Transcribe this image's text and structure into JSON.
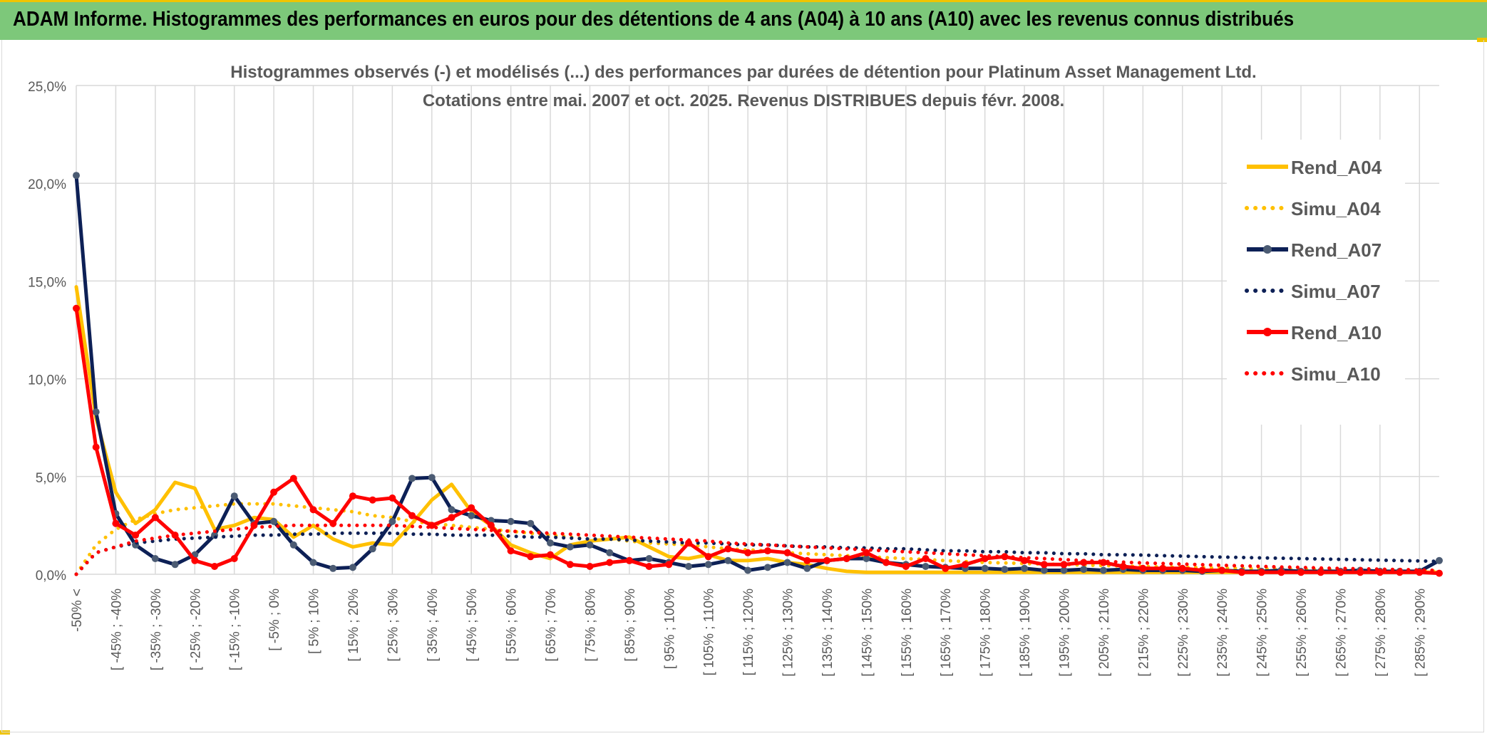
{
  "banner": {
    "title": "ADAM Informe. Histogrammes des performances en euros pour des détentions de 4 ans (A04) à 10 ans (A10) avec les revenus connus distribués"
  },
  "chart_data": {
    "type": "line",
    "title": "Histogrammes observés (-) et modélisés (...) des performances par durées de détention pour Platinum Asset Management Ltd.",
    "subtitle": "Cotations entre mai. 2007 et oct. 2025. Revenus DISTRIBUES depuis févr. 2008.",
    "xlabel": "",
    "ylabel": "",
    "ylim": [
      0,
      25
    ],
    "yticks": [
      "0,0%",
      "5,0%",
      "10,0%",
      "15,0%",
      "20,0%",
      "25,0%"
    ],
    "grid": true,
    "legend_position": "right",
    "x_labels": [
      "-50% <",
      "[ -45% ; -40%",
      "[ -35% ; -30%",
      "[ -25% ; -20%",
      "[ -15% ; -10%",
      "[ -5% ; 0%",
      "[ 5% ; 10%",
      "[ 15% ; 20%",
      "[ 25% ; 30%",
      "[ 35% ; 40%",
      "[ 45% ; 50%",
      "[ 55% ; 60%",
      "[ 65% ; 70%",
      "[ 75% ; 80%",
      "[ 85% ; 90%",
      "[ 95% ; 100%",
      "[ 105% ; 110%",
      "[ 115% ; 120%",
      "[ 125% ; 130%",
      "[ 135% ; 140%",
      "[ 145% ; 150%",
      "[ 155% ; 160%",
      "[ 165% ; 170%",
      "[ 175% ; 180%",
      "[ 185% ; 190%",
      "[ 195% ; 200%",
      "[ 205% ; 210%",
      "[ 215% ; 220%",
      "[ 225% ; 230%",
      "[ 235% ; 240%",
      "[ 245% ; 250%",
      "[ 255% ; 260%",
      "[ 265% ; 270%",
      "[ 275% ; 280%",
      "[ 285% ; 290%"
    ],
    "series": [
      {
        "name": "Rend_A04",
        "color": "#ffc000",
        "style": "solid",
        "markers": false,
        "values": [
          14.7,
          8.0,
          4.2,
          2.6,
          3.3,
          4.7,
          4.4,
          2.3,
          2.5,
          2.9,
          2.8,
          1.9,
          2.5,
          1.8,
          1.4,
          1.6,
          1.5,
          2.6,
          3.8,
          4.6,
          3.2,
          2.5,
          1.5,
          1.1,
          0.8,
          1.5,
          1.7,
          1.8,
          1.9,
          1.4,
          0.9,
          0.8,
          1.0,
          0.7,
          0.7,
          0.8,
          0.6,
          0.5,
          0.3,
          0.15,
          0.1,
          0.1,
          0.1,
          0.1,
          0.1,
          0.1,
          0.1,
          0.1,
          0.1,
          0.1,
          0.1,
          0.1,
          0.1,
          0.1,
          0.1,
          0.1,
          0.1,
          0.1,
          0.1,
          0.1,
          0.1,
          0.1,
          0.1,
          0.1,
          0.1,
          0.1,
          0.1,
          0.1,
          0.1,
          0.1
        ]
      },
      {
        "name": "Simu_A04",
        "color": "#ffc000",
        "style": "dotted",
        "markers": false,
        "values": [
          0.0,
          1.5,
          2.3,
          2.8,
          3.1,
          3.3,
          3.4,
          3.5,
          3.6,
          3.6,
          3.6,
          3.5,
          3.4,
          3.3,
          3.2,
          3.0,
          2.9,
          2.7,
          2.6,
          2.5,
          2.4,
          2.3,
          2.2,
          2.1,
          2.0,
          1.9,
          1.8,
          1.8,
          1.7,
          1.6,
          1.55,
          1.5,
          1.4,
          1.3,
          1.25,
          1.2,
          1.1,
          1.05,
          1.0,
          0.95,
          0.9,
          0.85,
          0.8,
          0.75,
          0.7,
          0.65,
          0.6,
          0.58,
          0.55,
          0.52,
          0.5,
          0.47,
          0.45,
          0.42,
          0.4,
          0.38,
          0.36,
          0.34,
          0.32,
          0.3,
          0.28,
          0.27,
          0.25,
          0.24,
          0.22,
          0.21,
          0.2,
          0.19,
          0.18,
          0.17
        ]
      },
      {
        "name": "Rend_A07",
        "color": "#0d2056",
        "style": "solid",
        "markers": true,
        "values": [
          20.4,
          8.3,
          3.1,
          1.5,
          0.8,
          0.5,
          1.0,
          2.0,
          4.0,
          2.6,
          2.7,
          1.5,
          0.6,
          0.3,
          0.35,
          1.3,
          2.7,
          4.9,
          4.95,
          3.3,
          3.0,
          2.75,
          2.7,
          2.6,
          1.6,
          1.4,
          1.5,
          1.1,
          0.7,
          0.8,
          0.6,
          0.4,
          0.5,
          0.7,
          0.2,
          0.35,
          0.6,
          0.3,
          0.7,
          0.8,
          0.8,
          0.6,
          0.5,
          0.4,
          0.35,
          0.3,
          0.3,
          0.25,
          0.3,
          0.2,
          0.2,
          0.25,
          0.2,
          0.25,
          0.2,
          0.2,
          0.2,
          0.15,
          0.2,
          0.15,
          0.15,
          0.2,
          0.15,
          0.15,
          0.15,
          0.2,
          0.15,
          0.15,
          0.15,
          0.7
        ]
      },
      {
        "name": "Simu_A07",
        "color": "#0d2056",
        "style": "dotted",
        "markers": false,
        "values": [
          0.0,
          1.1,
          1.4,
          1.6,
          1.7,
          1.8,
          1.85,
          1.9,
          1.95,
          2.0,
          2.0,
          2.05,
          2.05,
          2.1,
          2.1,
          2.1,
          2.1,
          2.05,
          2.05,
          2.0,
          2.0,
          2.0,
          1.95,
          1.9,
          1.9,
          1.85,
          1.8,
          1.8,
          1.75,
          1.7,
          1.65,
          1.6,
          1.6,
          1.55,
          1.5,
          1.5,
          1.45,
          1.4,
          1.4,
          1.35,
          1.35,
          1.3,
          1.3,
          1.25,
          1.2,
          1.2,
          1.15,
          1.15,
          1.1,
          1.1,
          1.05,
          1.05,
          1.0,
          1.0,
          0.98,
          0.95,
          0.93,
          0.9,
          0.88,
          0.86,
          0.84,
          0.82,
          0.8,
          0.78,
          0.76,
          0.74,
          0.72,
          0.7,
          0.68,
          0.66
        ]
      },
      {
        "name": "Rend_A10",
        "color": "#ff0000",
        "style": "solid",
        "markers": true,
        "values": [
          13.6,
          6.5,
          2.6,
          2.0,
          2.9,
          2.0,
          0.7,
          0.4,
          0.8,
          2.5,
          4.2,
          4.9,
          3.3,
          2.6,
          4.0,
          3.8,
          3.9,
          3.0,
          2.5,
          2.9,
          3.4,
          2.5,
          1.2,
          0.9,
          1.0,
          0.5,
          0.4,
          0.6,
          0.7,
          0.4,
          0.5,
          1.6,
          0.9,
          1.3,
          1.1,
          1.2,
          1.1,
          0.7,
          0.7,
          0.8,
          1.1,
          0.6,
          0.4,
          0.8,
          0.3,
          0.5,
          0.8,
          0.9,
          0.7,
          0.5,
          0.5,
          0.6,
          0.6,
          0.4,
          0.3,
          0.3,
          0.3,
          0.2,
          0.2,
          0.1,
          0.1,
          0.1,
          0.1,
          0.1,
          0.1,
          0.1,
          0.1,
          0.1,
          0.1,
          0.05
        ]
      },
      {
        "name": "Simu_A10",
        "color": "#ff0000",
        "style": "dotted",
        "markers": false,
        "values": [
          0.0,
          1.1,
          1.4,
          1.7,
          1.85,
          2.0,
          2.1,
          2.2,
          2.3,
          2.4,
          2.45,
          2.5,
          2.5,
          2.5,
          2.5,
          2.5,
          2.5,
          2.45,
          2.4,
          2.35,
          2.3,
          2.25,
          2.2,
          2.15,
          2.1,
          2.05,
          2.0,
          1.95,
          1.9,
          1.85,
          1.8,
          1.75,
          1.7,
          1.6,
          1.55,
          1.5,
          1.45,
          1.4,
          1.35,
          1.3,
          1.25,
          1.2,
          1.15,
          1.1,
          1.05,
          1.0,
          0.95,
          0.9,
          0.85,
          0.8,
          0.75,
          0.7,
          0.66,
          0.62,
          0.58,
          0.55,
          0.52,
          0.49,
          0.46,
          0.43,
          0.4,
          0.37,
          0.35,
          0.32,
          0.3,
          0.28,
          0.26,
          0.24,
          0.22,
          0.2
        ]
      }
    ]
  },
  "colors": {
    "banner_bg": "#7dc87a",
    "accent_yellow": "#ffc000",
    "navy": "#0d2056",
    "red": "#ff0000",
    "grid": "#d9d9d9",
    "axis_text": "#595959"
  }
}
